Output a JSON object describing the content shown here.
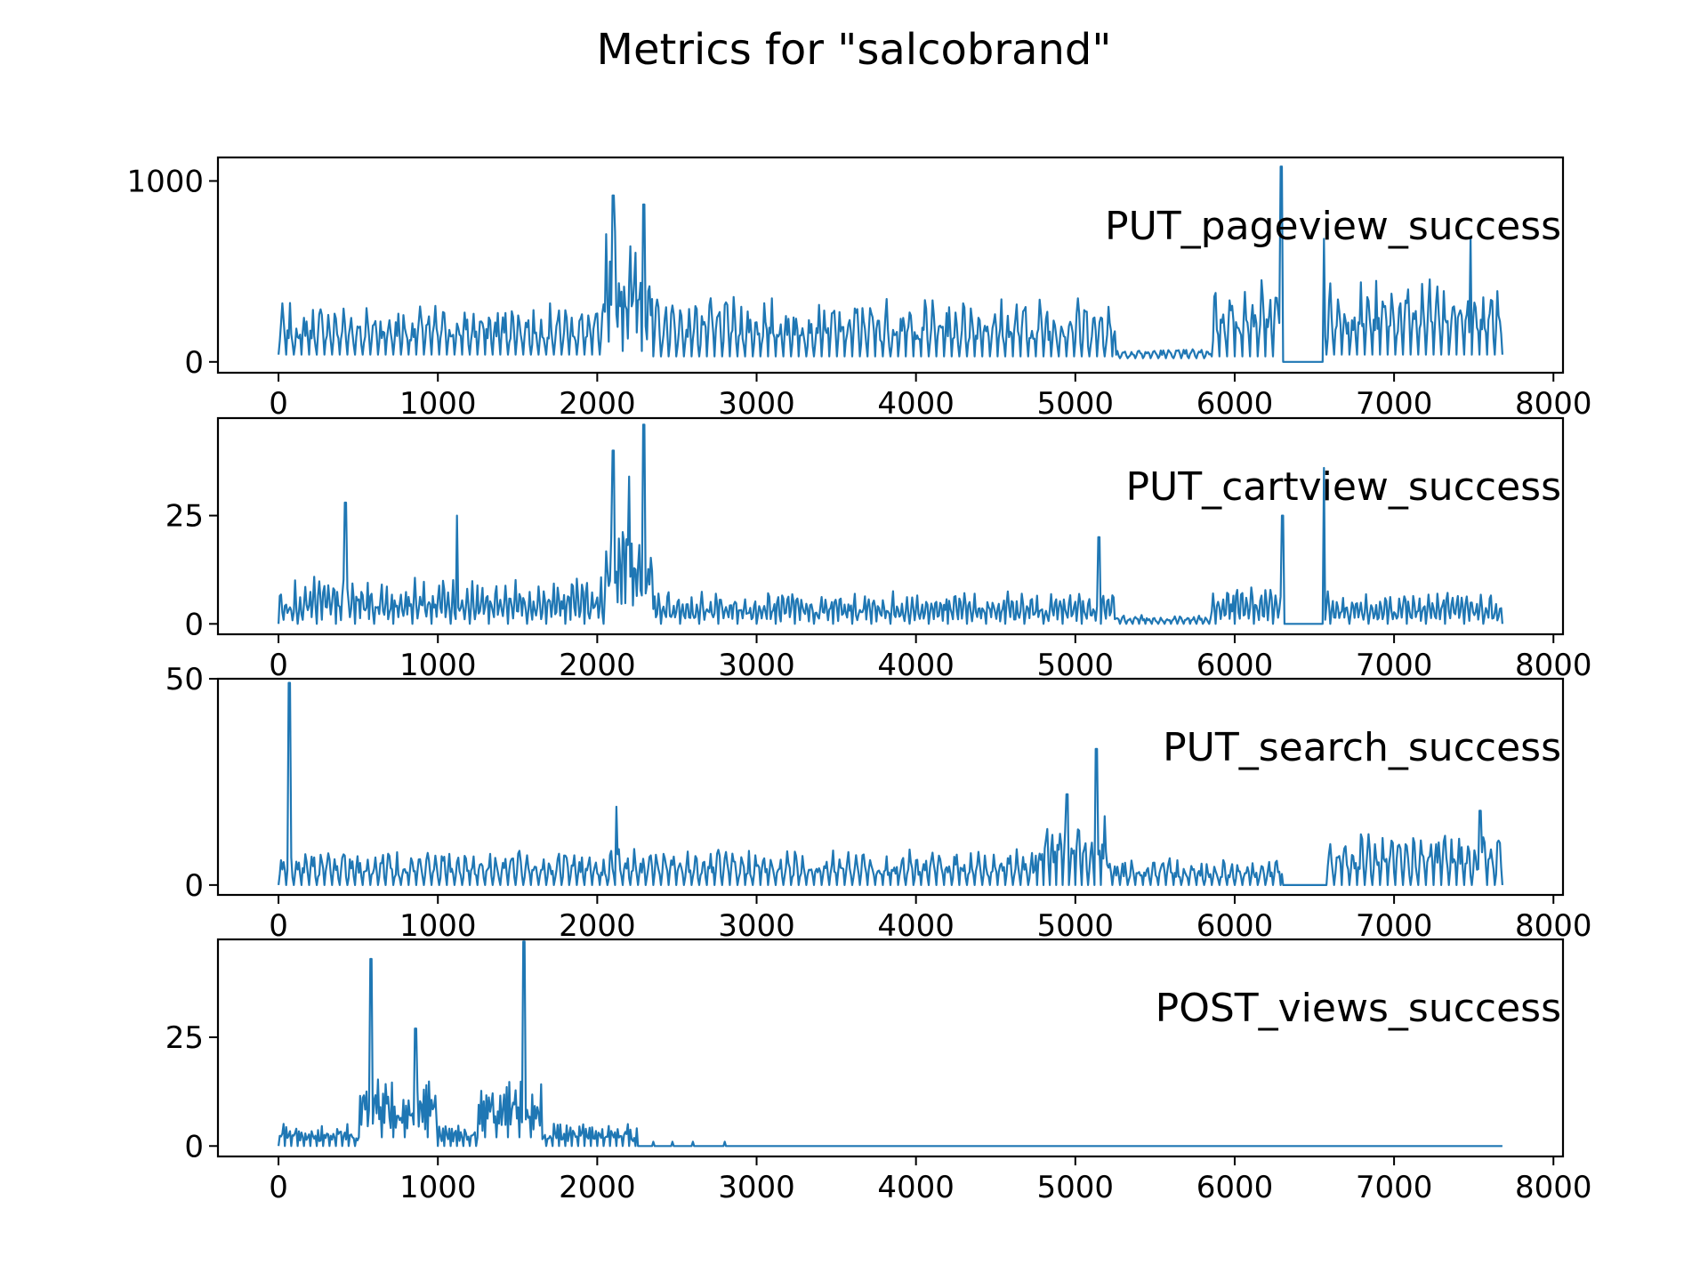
{
  "figure_title": "Metrics for \"salcobrand\"",
  "chart_data": [
    {
      "type": "line",
      "series": [
        {
          "name": "PUT_pageview_success",
          "x_range": [
            0,
            7680
          ]
        }
      ],
      "label": "PUT_pageview_success",
      "xlim": [
        -380,
        8060
      ],
      "ylim": [
        -60,
        1130
      ],
      "xticks": [
        "0",
        "1000",
        "2000",
        "3000",
        "4000",
        "5000",
        "6000",
        "7000",
        "8000"
      ],
      "xtick_values": [
        0,
        1000,
        2000,
        3000,
        4000,
        5000,
        6000,
        7000,
        8000
      ],
      "yticks": [
        "0",
        "1000"
      ],
      "ytick_values": [
        0,
        1000
      ],
      "segments": [
        {
          "x": [
            0,
            2050
          ],
          "base": 40,
          "amp": 260,
          "period": 48
        },
        {
          "x": [
            2050,
            2350
          ],
          "base": 60,
          "amp": 650,
          "period": 30
        },
        {
          "x": [
            2350,
            5250
          ],
          "base": 30,
          "amp": 300,
          "period": 48
        },
        {
          "x": [
            5250,
            5850
          ],
          "base": 20,
          "amp": 50,
          "period": 48
        },
        {
          "x": [
            5850,
            6300
          ],
          "base": 30,
          "amp": 400,
          "period": 48
        },
        {
          "x": [
            6300,
            6560
          ],
          "base": 0,
          "amp": 0,
          "period": 48
        },
        {
          "x": [
            6560,
            7680
          ],
          "base": 40,
          "amp": 380,
          "period": 48
        }
      ],
      "peaks": [
        {
          "x": 2100,
          "y": 920
        },
        {
          "x": 2290,
          "y": 870
        },
        {
          "x": 6290,
          "y": 1080
        },
        {
          "x": 6560,
          "y": 680
        },
        {
          "x": 7480,
          "y": 690
        }
      ],
      "flat_segments": [
        {
          "x": [
            6310,
            6540
          ],
          "y": 10
        },
        {
          "x": [
            6560,
            6590
          ],
          "y": 680
        }
      ]
    },
    {
      "type": "line",
      "series": [
        {
          "name": "PUT_cartview_success",
          "x_range": [
            0,
            7680
          ]
        }
      ],
      "label": "PUT_cartview_success",
      "xlim": [
        -380,
        8060
      ],
      "ylim": [
        -2.4,
        47.5
      ],
      "xticks": [
        "0",
        "1000",
        "2000",
        "3000",
        "4000",
        "5000",
        "6000",
        "7000",
        "8000"
      ],
      "xtick_values": [
        0,
        1000,
        2000,
        3000,
        4000,
        5000,
        6000,
        7000,
        8000
      ],
      "yticks": [
        "0",
        "25"
      ],
      "ytick_values": [
        0,
        25
      ],
      "segments": [
        {
          "x": [
            0,
            2050
          ],
          "base": 0,
          "amp": 10,
          "period": 30
        },
        {
          "x": [
            2050,
            2350
          ],
          "base": 2,
          "amp": 20,
          "period": 25
        },
        {
          "x": [
            2350,
            5250
          ],
          "base": 0,
          "amp": 7,
          "period": 30
        },
        {
          "x": [
            5250,
            5850
          ],
          "base": 0,
          "amp": 2,
          "period": 40
        },
        {
          "x": [
            5850,
            6300
          ],
          "base": 0,
          "amp": 8,
          "period": 30
        },
        {
          "x": [
            6300,
            6560
          ],
          "base": 0,
          "amp": 0,
          "period": 48
        },
        {
          "x": [
            6560,
            7680
          ],
          "base": 0,
          "amp": 7,
          "period": 30
        }
      ],
      "peaks": [
        {
          "x": 420,
          "y": 28
        },
        {
          "x": 1120,
          "y": 25
        },
        {
          "x": 2100,
          "y": 40
        },
        {
          "x": 2200,
          "y": 34
        },
        {
          "x": 2290,
          "y": 46
        },
        {
          "x": 5150,
          "y": 20
        },
        {
          "x": 6300,
          "y": 25
        },
        {
          "x": 6560,
          "y": 36
        }
      ],
      "flat_segments": [
        {
          "x": [
            6310,
            6540
          ],
          "y": 0
        }
      ]
    },
    {
      "type": "line",
      "series": [
        {
          "name": "PUT_search_success",
          "x_range": [
            0,
            7680
          ]
        }
      ],
      "label": "PUT_search_success",
      "xlim": [
        -380,
        8060
      ],
      "ylim": [
        -2.4,
        50.0
      ],
      "xticks": [
        "0",
        "1000",
        "2000",
        "3000",
        "4000",
        "5000",
        "6000",
        "7000",
        "8000"
      ],
      "xtick_values": [
        0,
        1000,
        2000,
        3000,
        4000,
        5000,
        6000,
        7000,
        8000
      ],
      "yticks": [
        "0",
        "50"
      ],
      "ytick_values": [
        0,
        50
      ],
      "segments": [
        {
          "x": [
            0,
            4750
          ],
          "base": 0,
          "amp": 8,
          "period": 48
        },
        {
          "x": [
            4750,
            5200
          ],
          "base": 0,
          "amp": 16,
          "period": 40
        },
        {
          "x": [
            5200,
            6300
          ],
          "base": 0,
          "amp": 6,
          "period": 48
        },
        {
          "x": [
            6300,
            6580
          ],
          "base": 0,
          "amp": 0,
          "period": 48
        },
        {
          "x": [
            6580,
            7680
          ],
          "base": 0,
          "amp": 12,
          "period": 48
        }
      ],
      "peaks": [
        {
          "x": 70,
          "y": 49
        },
        {
          "x": 2120,
          "y": 19
        },
        {
          "x": 4950,
          "y": 22
        },
        {
          "x": 5130,
          "y": 33
        },
        {
          "x": 7540,
          "y": 18
        }
      ],
      "flat_segments": [
        {
          "x": [
            6310,
            6570
          ],
          "y": 0
        }
      ]
    },
    {
      "type": "line",
      "series": [
        {
          "name": "POST_views_success",
          "x_range": [
            0,
            7680
          ]
        }
      ],
      "label": "POST_views_success",
      "xlim": [
        -380,
        8060
      ],
      "ylim": [
        -2.4,
        47.5
      ],
      "xticks": [
        "0",
        "1000",
        "2000",
        "3000",
        "4000",
        "5000",
        "6000",
        "7000",
        "8000"
      ],
      "xtick_values": [
        0,
        1000,
        2000,
        3000,
        4000,
        5000,
        6000,
        7000,
        8000
      ],
      "yticks": [
        "0",
        "25"
      ],
      "ytick_values": [
        0,
        25
      ],
      "segments": [
        {
          "x": [
            0,
            500
          ],
          "base": 0,
          "amp": 5,
          "period": 20
        },
        {
          "x": [
            500,
            1000
          ],
          "base": 2,
          "amp": 14,
          "period": 18
        },
        {
          "x": [
            1000,
            1250
          ],
          "base": 0,
          "amp": 5,
          "period": 20
        },
        {
          "x": [
            1250,
            1650
          ],
          "base": 2,
          "amp": 12,
          "period": 18
        },
        {
          "x": [
            1650,
            2250
          ],
          "base": 0,
          "amp": 5,
          "period": 20
        },
        {
          "x": [
            2250,
            7680
          ],
          "base": 0,
          "amp": 0,
          "period": 48
        }
      ],
      "peaks": [
        {
          "x": 580,
          "y": 43
        },
        {
          "x": 860,
          "y": 27
        },
        {
          "x": 1540,
          "y": 47
        }
      ],
      "sparse_blips": [
        {
          "x": 2350,
          "y": 1
        },
        {
          "x": 2470,
          "y": 1
        },
        {
          "x": 2600,
          "y": 1
        },
        {
          "x": 2800,
          "y": 1
        },
        {
          "x": 3340,
          "y": 1
        }
      ]
    }
  ],
  "colors": {
    "line": "#1f77b4",
    "axes": "#000000",
    "background": "#ffffff"
  }
}
